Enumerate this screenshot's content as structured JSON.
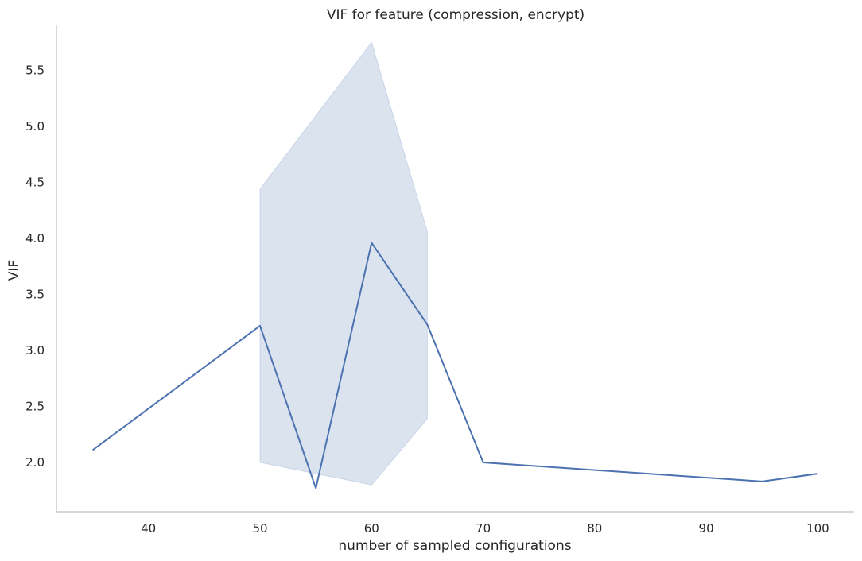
{
  "chart_data": {
    "type": "line",
    "title": "VIF for feature (compression, encrypt)",
    "xlabel": "number of sampled configurations",
    "ylabel": "VIF",
    "xlim": [
      31.75,
      103.25
    ],
    "ylim": [
      1.56,
      5.9
    ],
    "xticks": [
      40,
      50,
      60,
      70,
      80,
      90,
      100
    ],
    "xtick_labels": [
      "40",
      "50",
      "60",
      "70",
      "80",
      "90",
      "100"
    ],
    "yticks": [
      2.0,
      2.5,
      3.0,
      3.5,
      4.0,
      4.5,
      5.0,
      5.5
    ],
    "ytick_labels": [
      "2.0",
      "2.5",
      "3.0",
      "3.5",
      "4.0",
      "4.5",
      "5.0",
      "5.5"
    ],
    "grid": false,
    "line_color": "#4c72b0",
    "band_color": "#4c72b0",
    "series": [
      {
        "name": "VIF",
        "x": [
          35,
          50,
          55,
          60,
          65,
          70,
          95,
          100
        ],
        "y": [
          2.11,
          3.22,
          1.77,
          3.96,
          3.23,
          2.0,
          1.83,
          1.9
        ]
      }
    ],
    "confidence_band": {
      "x": [
        50,
        60,
        65
      ],
      "lower": [
        2.0,
        1.8,
        2.39
      ],
      "upper": [
        4.44,
        5.75,
        4.06
      ]
    }
  }
}
